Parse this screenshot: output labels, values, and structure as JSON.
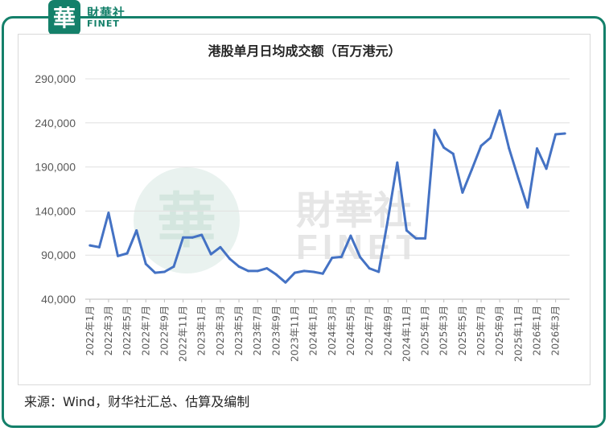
{
  "brand": {
    "name_cn": "財華社",
    "name_en": "FINET",
    "mark_char": "華",
    "color": "#14806a"
  },
  "chart_data": {
    "type": "line",
    "title": "港股单月日均成交额（百万港元）",
    "xlabel": "",
    "ylabel": "",
    "ylim": [
      40000,
      290000
    ],
    "y_ticks": [
      "40,000",
      "90,000",
      "140,000",
      "190,000",
      "240,000",
      "290,000"
    ],
    "grid": true,
    "legend": "none",
    "line_color": "#4472c4",
    "x_tick_labels": [
      "2022年1月",
      "2022年3月",
      "2022年5月",
      "2022年7月",
      "2022年9月",
      "2022年11月",
      "2023年1月",
      "2023年3月",
      "2023年5月",
      "2023年7月",
      "2023年9月",
      "2023年11月",
      "2024年1月",
      "2024年3月",
      "2024年5月",
      "2024年7月",
      "2024年9月",
      "2024年11月",
      "2025年1月",
      "2025年3月",
      "2025年5月",
      "2025年7月",
      "2025年9月",
      "2025年11月",
      "2026年1月",
      "2026年3月"
    ],
    "x": [
      "2022-01",
      "2022-02",
      "2022-03",
      "2022-04",
      "2022-05",
      "2022-06",
      "2022-07",
      "2022-08",
      "2022-09",
      "2022-10",
      "2022-11",
      "2022-12",
      "2023-01",
      "2023-02",
      "2023-03",
      "2023-04",
      "2023-05",
      "2023-06",
      "2023-07",
      "2023-08",
      "2023-09",
      "2023-10",
      "2023-11",
      "2023-12",
      "2024-01",
      "2024-02",
      "2024-03",
      "2024-04",
      "2024-05",
      "2024-06",
      "2024-07",
      "2024-08",
      "2024-09",
      "2024-10",
      "2024-11",
      "2024-12",
      "2025-01",
      "2025-02",
      "2025-03",
      "2025-04",
      "2025-05",
      "2025-06",
      "2025-07",
      "2025-08",
      "2025-09",
      "2025-10",
      "2025-11",
      "2025-12",
      "2026-01",
      "2026-02",
      "2026-03",
      "2026-04"
    ],
    "values": [
      101000,
      99000,
      138000,
      89000,
      92000,
      118000,
      80000,
      70000,
      71000,
      77000,
      110000,
      110000,
      113000,
      91000,
      99000,
      86000,
      77000,
      72000,
      72000,
      75000,
      68000,
      59000,
      70000,
      72000,
      71000,
      69000,
      87000,
      88000,
      112000,
      88000,
      75000,
      71000,
      131000,
      195000,
      118000,
      109000,
      109000,
      232000,
      212000,
      205000,
      161000,
      187000,
      214000,
      223000,
      254000,
      211000,
      177000,
      144000,
      211000,
      188000,
      227000,
      228000
    ]
  },
  "watermark": {
    "cn": "財華社",
    "en": "FINET",
    "mark_char": "華"
  },
  "source_text": "来源：Wind，财华社汇总、估算及编制"
}
